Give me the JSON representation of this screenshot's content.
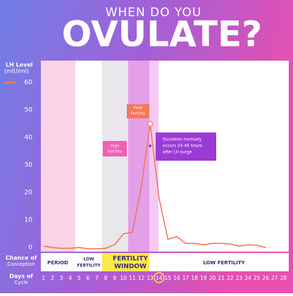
{
  "chart_data": {
    "type": "line",
    "title": "WHEN DO YOU",
    "subtitle": "OVULATE?",
    "y_label": "LH Level",
    "y_unit": "(mIU/ml)",
    "x_label": "Days of",
    "x_label_2": "Cycle",
    "conception_label": "Chance of",
    "conception_label_2": "Conception",
    "phases": [
      "PERIOD",
      "LOW",
      "FERTILITY",
      "FERTILITY",
      "WINDOW",
      "LOW FERTILITY"
    ],
    "annotations": [
      "Peak",
      "Fertility",
      "High",
      "Fertility",
      "Ovulation normally",
      "occurs 24-48 hours",
      "after LH surge"
    ],
    "x": [
      1,
      2,
      3,
      4,
      5,
      6,
      7,
      8,
      9,
      10,
      11,
      12,
      13,
      14,
      15,
      16,
      17,
      18,
      19,
      20,
      21,
      22,
      23,
      24,
      25,
      26
    ],
    "series": [
      {
        "color": "#f4785a",
        "values": [
          0.5,
          0,
          -0.3,
          -0.3,
          0,
          -0.5,
          -0.5,
          -0.3,
          1,
          5,
          5.5,
          22,
          45,
          18,
          3,
          4,
          1.5,
          1.5,
          1,
          1.5,
          1.5,
          1.3,
          0.5,
          1,
          0.8,
          0
        ]
      }
    ],
    "xlim": [
      0.7,
      28.6
    ],
    "xticks": [
      1,
      2,
      3,
      4,
      5,
      6,
      7,
      8,
      9,
      10,
      11,
      12,
      13,
      14,
      15,
      16,
      17,
      18,
      19,
      20,
      21,
      22,
      23,
      24,
      25,
      26,
      27,
      28
    ],
    "highlight_day": 14,
    "ylim": [
      -1.5,
      68
    ],
    "yticks": [
      0,
      10,
      20,
      30,
      40,
      50,
      60
    ]
  }
}
